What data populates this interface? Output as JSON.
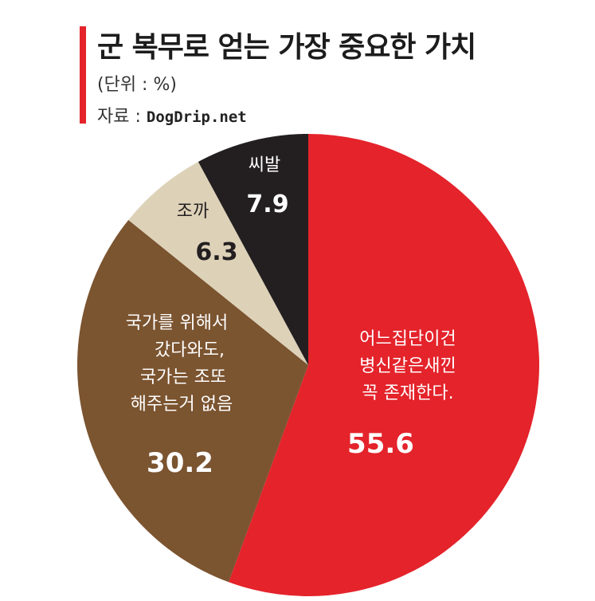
{
  "header": {
    "title": "군 복무로 얻는 가장 중요한 가치",
    "unit": "(단위 : %)",
    "source_prefix": "자료 : ",
    "source_site": "DogDrip.net"
  },
  "colors": {
    "accent": "#e4232b",
    "slice_1": "#e4232b",
    "slice_2": "#7b5430",
    "slice_3": "#ddd2b8",
    "slice_4": "#231f20"
  },
  "chart_data": {
    "type": "pie",
    "title": "군 복무로 얻는 가장 중요한 가치",
    "unit": "%",
    "start_angle_deg": 0,
    "direction": "clockwise",
    "slices": [
      {
        "label_lines": [
          "어느집단이건",
          "병신같은새낀",
          "꼭 존재한다."
        ],
        "value": 55.6,
        "value_label": "55.6",
        "color": "#e4232b",
        "text_color": "#ffffff"
      },
      {
        "label_lines": [
          "국가를 위해서",
          "갔다와도,",
          "국가는 조또",
          "해주는거 없음"
        ],
        "value": 30.2,
        "value_label": "30.2",
        "color": "#7b5430",
        "text_color": "#ffffff"
      },
      {
        "label_lines": [
          "조까"
        ],
        "value": 6.3,
        "value_label": "6.3",
        "color": "#ddd2b8",
        "text_color": "#231f20"
      },
      {
        "label_lines": [
          "씨발"
        ],
        "value": 7.9,
        "value_label": "7.9",
        "color": "#231f20",
        "text_color": "#ffffff"
      }
    ]
  }
}
